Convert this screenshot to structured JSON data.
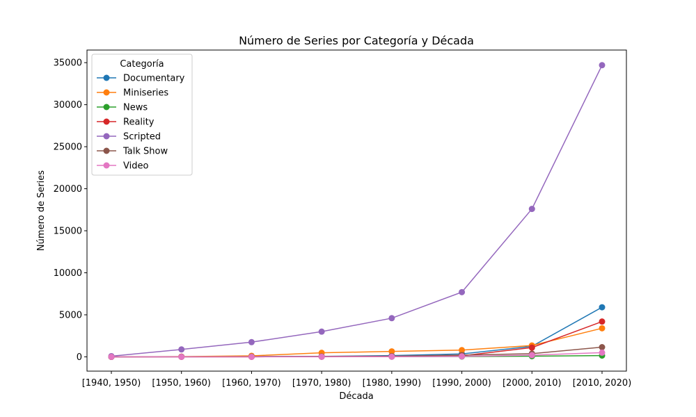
{
  "chart_data": {
    "type": "line",
    "title": "Número de Series por Categoría y Década",
    "xlabel": "Década",
    "ylabel": "Número de Series",
    "categories": [
      "[1940, 1950)",
      "[1950, 1960)",
      "[1960, 1970)",
      "[1970, 1980)",
      "[1980, 1990)",
      "[1990, 2000)",
      "[2000, 2010)",
      "[2010, 2020)"
    ],
    "ylim": [
      -1700,
      36500
    ],
    "yticks": [
      0,
      5000,
      10000,
      15000,
      20000,
      25000,
      30000,
      35000
    ],
    "grid": false,
    "legend": {
      "title": "Categoría",
      "placement": "top-left"
    },
    "series": [
      {
        "name": "Documentary",
        "color": "#1f77b4",
        "values": [
          0,
          20,
          40,
          60,
          150,
          350,
          1250,
          5900
        ]
      },
      {
        "name": "Miniseries",
        "color": "#ff7f0e",
        "values": [
          0,
          30,
          120,
          480,
          650,
          800,
          1350,
          3400
        ]
      },
      {
        "name": "News",
        "color": "#2ca02c",
        "values": [
          0,
          5,
          10,
          15,
          20,
          40,
          80,
          150
        ]
      },
      {
        "name": "Reality",
        "color": "#d62728",
        "values": [
          0,
          5,
          10,
          20,
          40,
          120,
          1100,
          4200
        ]
      },
      {
        "name": "Scripted",
        "color": "#9467bd",
        "values": [
          80,
          880,
          1750,
          3000,
          4600,
          7700,
          17600,
          34700
        ]
      },
      {
        "name": "Talk Show",
        "color": "#8c564b",
        "values": [
          0,
          10,
          30,
          50,
          80,
          200,
          380,
          1150
        ]
      },
      {
        "name": "Video",
        "color": "#e377c2",
        "values": [
          0,
          0,
          0,
          10,
          20,
          60,
          200,
          500
        ]
      }
    ]
  }
}
